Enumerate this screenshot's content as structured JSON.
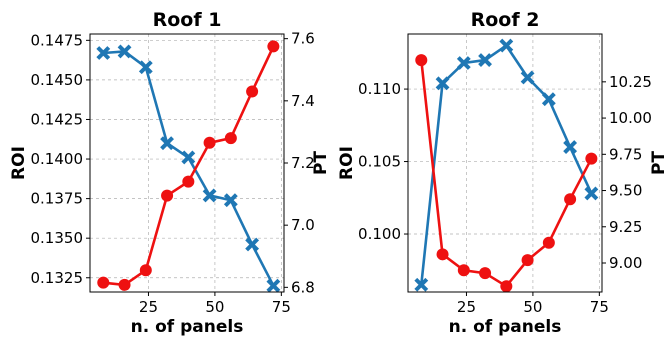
{
  "colors": {
    "roi": "#1f77b4",
    "pt": "#ee1111"
  },
  "chart_data": [
    {
      "type": "line",
      "title": "Roof 1",
      "xlabel": "n. of panels",
      "ylabel": "ROI",
      "ylabel_right": "PT",
      "xlim": [
        3,
        76
      ],
      "xticks": [
        25,
        50,
        75
      ],
      "ylim": [
        0.1316,
        0.1479
      ],
      "yticks": [
        0.1325,
        0.135,
        0.1375,
        0.14,
        0.1425,
        0.145,
        0.1475
      ],
      "ytick_labels": [
        "0.1325",
        "0.1350",
        "0.1375",
        "0.1400",
        "0.1425",
        "0.1450",
        "0.1475"
      ],
      "y2lim": [
        6.785,
        7.615
      ],
      "y2ticks": [
        6.8,
        7.0,
        7.2,
        7.4,
        7.6
      ],
      "y2tick_labels": [
        "6.8",
        "7.0",
        "7.2",
        "7.4",
        "7.6"
      ],
      "grid": true,
      "series": [
        {
          "axis": "left",
          "marker": "x",
          "color": "#1f77b4",
          "x": [
            8,
            16,
            24,
            32,
            40,
            48,
            56,
            64,
            72
          ],
          "values": [
            0.1467,
            0.1468,
            0.1458,
            0.141,
            0.1401,
            0.1377,
            0.1374,
            0.1346,
            0.132
          ]
        },
        {
          "axis": "right",
          "marker": "o",
          "color": "#ee1111",
          "x": [
            8,
            16,
            24,
            32,
            40,
            48,
            56,
            64,
            72
          ],
          "values": [
            6.815,
            6.808,
            6.855,
            7.095,
            7.14,
            7.265,
            7.28,
            7.43,
            7.575
          ]
        }
      ]
    },
    {
      "type": "line",
      "title": "Roof 2",
      "xlabel": "n. of panels",
      "ylabel": "ROI",
      "ylabel_right": "PT",
      "xlim": [
        3,
        76
      ],
      "xticks": [
        25,
        50,
        75
      ],
      "ylim": [
        0.096,
        0.1138
      ],
      "yticks": [
        0.1,
        0.105,
        0.11
      ],
      "ytick_labels": [
        "0.100",
        "0.105",
        "0.110"
      ],
      "y2lim": [
        8.8,
        10.58
      ],
      "y2ticks": [
        9.0,
        9.25,
        9.5,
        9.75,
        10.0,
        10.25
      ],
      "y2tick_labels": [
        "9.00",
        "9.25",
        "9.50",
        "9.75",
        "10.00",
        "10.25"
      ],
      "grid": true,
      "series": [
        {
          "axis": "left",
          "marker": "x",
          "color": "#1f77b4",
          "x": [
            8,
            16,
            24,
            32,
            40,
            48,
            56,
            64,
            72
          ],
          "values": [
            0.0965,
            0.1104,
            0.1118,
            0.112,
            0.113,
            0.1108,
            0.1093,
            0.106,
            0.1028
          ]
        },
        {
          "axis": "right",
          "marker": "o",
          "color": "#ee1111",
          "x": [
            8,
            16,
            24,
            32,
            40,
            48,
            56,
            64,
            72
          ],
          "values": [
            10.4,
            9.06,
            8.95,
            8.93,
            8.84,
            9.02,
            9.14,
            9.44,
            9.72
          ]
        }
      ]
    }
  ]
}
